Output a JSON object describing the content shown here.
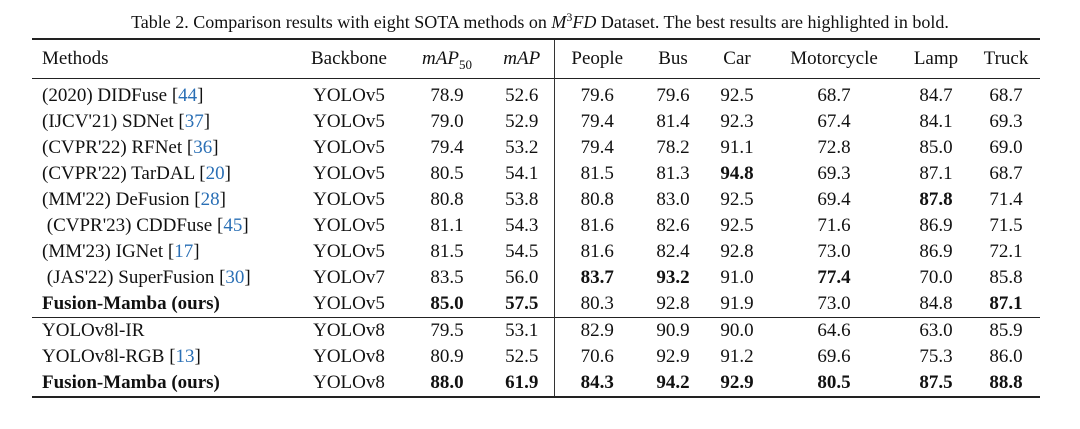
{
  "caption": {
    "prefix": "Table 2. Comparison results with eight SOTA methods on ",
    "dataset": "M",
    "dataset_sup": "3",
    "dataset_rest": "FD",
    "suffix": " Dataset. The best results are highlighted in bold."
  },
  "headers": [
    "Methods",
    "Backbone",
    "mAP",
    "mAP",
    "People",
    "Bus",
    "Car",
    "Motorcycle",
    "Lamp",
    "Truck"
  ],
  "header_sub": "50",
  "rows": [
    {
      "pre": "(2020) DIDFuse [",
      "cite": "44",
      "post": "]",
      "backbone": "YOLOv5",
      "vals": [
        "78.9",
        "52.6",
        "79.6",
        "79.6",
        "92.5",
        "68.7",
        "84.7",
        "68.7"
      ],
      "bold": []
    },
    {
      "pre": "(IJCV'21) SDNet [",
      "cite": "37",
      "post": "]",
      "backbone": "YOLOv5",
      "vals": [
        "79.0",
        "52.9",
        "79.4",
        "81.4",
        "92.3",
        "67.4",
        "84.1",
        "69.3"
      ],
      "bold": []
    },
    {
      "pre": "(CVPR'22) RFNet [",
      "cite": "36",
      "post": "]",
      "backbone": "YOLOv5",
      "vals": [
        "79.4",
        "53.2",
        "79.4",
        "78.2",
        "91.1",
        "72.8",
        "85.0",
        "69.0"
      ],
      "bold": []
    },
    {
      "pre": "(CVPR'22) TarDAL [",
      "cite": "20",
      "post": "]",
      "backbone": "YOLOv5",
      "vals": [
        "80.5",
        "54.1",
        "81.5",
        "81.3",
        "94.8",
        "69.3",
        "87.1",
        "68.7"
      ],
      "bold": [
        4
      ]
    },
    {
      "pre": "(MM'22) DeFusion [",
      "cite": "28",
      "post": "]",
      "backbone": "YOLOv5",
      "vals": [
        "80.8",
        "53.8",
        "80.8",
        "83.0",
        "92.5",
        "69.4",
        "87.8",
        "71.4"
      ],
      "bold": [
        6
      ]
    },
    {
      "pre": " (CVPR'23) CDDFuse [",
      "cite": "45",
      "post": "]",
      "backbone": "YOLOv5",
      "vals": [
        "81.1",
        "54.3",
        "81.6",
        "82.6",
        "92.5",
        "71.6",
        "86.9",
        "71.5"
      ],
      "bold": []
    },
    {
      "pre": "(MM'23) IGNet [",
      "cite": "17",
      "post": "]",
      "backbone": "YOLOv5",
      "vals": [
        "81.5",
        "54.5",
        "81.6",
        "82.4",
        "92.8",
        "73.0",
        "86.9",
        "72.1"
      ],
      "bold": []
    },
    {
      "pre": " (JAS'22) SuperFusion [",
      "cite": "30",
      "post": "]",
      "backbone": "YOLOv7",
      "vals": [
        "83.5",
        "56.0",
        "83.7",
        "93.2",
        "91.0",
        "77.4",
        "70.0",
        "85.8"
      ],
      "bold": [
        2,
        3,
        5
      ]
    },
    {
      "pre": "Fusion-Mamba (ours)",
      "cite": "",
      "post": "",
      "backbone": "YOLOv5",
      "vals": [
        "85.0",
        "57.5",
        "80.3",
        "92.8",
        "91.9",
        "73.0",
        "84.8",
        "87.1"
      ],
      "bold": [
        0,
        1,
        7
      ],
      "name_bold": true
    },
    {
      "pre": "YOLOv8l-IR",
      "cite": "",
      "post": "",
      "backbone": "YOLOv8",
      "vals": [
        "79.5",
        "53.1",
        "82.9",
        "90.9",
        "90.0",
        "64.6",
        "63.0",
        "85.9"
      ],
      "bold": [],
      "sep": true
    },
    {
      "pre": "YOLOv8l-RGB [",
      "cite": "13",
      "post": "]",
      "backbone": "YOLOv8",
      "vals": [
        "80.9",
        "52.5",
        "70.6",
        "92.9",
        "91.2",
        "69.6",
        "75.3",
        "86.0"
      ],
      "bold": []
    },
    {
      "pre": "Fusion-Mamba (ours)",
      "cite": "",
      "post": "",
      "backbone": "YOLOv8",
      "vals": [
        "88.0",
        "61.9",
        "84.3",
        "94.2",
        "92.9",
        "80.5",
        "87.5",
        "88.8"
      ],
      "bold": [
        0,
        1,
        2,
        3,
        4,
        5,
        6,
        7
      ],
      "name_bold": true
    }
  ]
}
